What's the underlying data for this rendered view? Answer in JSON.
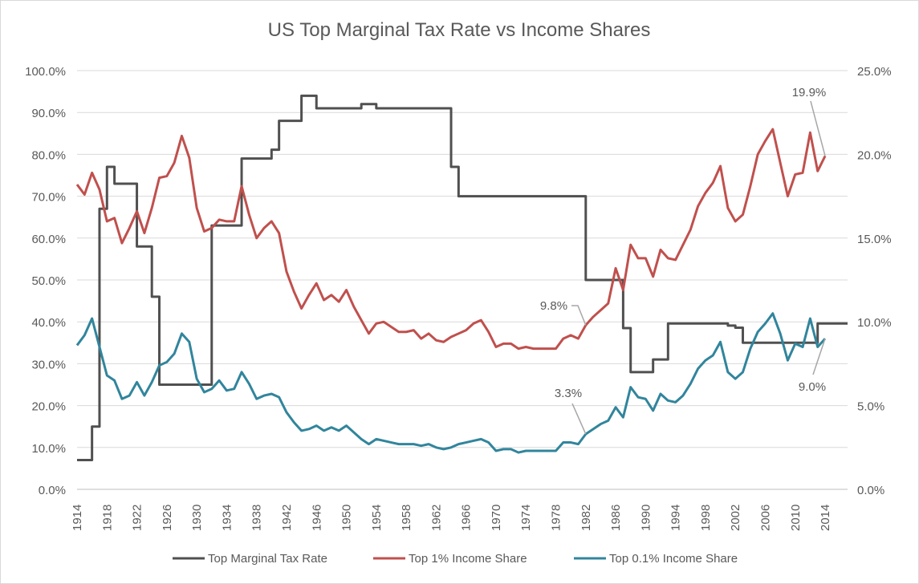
{
  "chart_data": {
    "type": "line",
    "title": "US Top Marginal Tax Rate vs Income Shares",
    "x_ticks": [
      "1914",
      "1918",
      "1922",
      "1926",
      "1930",
      "1934",
      "1938",
      "1942",
      "1946",
      "1950",
      "1954",
      "1958",
      "1962",
      "1966",
      "1970",
      "1974",
      "1978",
      "1982",
      "1986",
      "1990",
      "1994",
      "1998",
      "2002",
      "2006",
      "2010",
      "2014"
    ],
    "xlim": [
      1914,
      2017
    ],
    "y_left": {
      "ticks": [
        "0.0%",
        "10.0%",
        "20.0%",
        "30.0%",
        "40.0%",
        "50.0%",
        "60.0%",
        "70.0%",
        "80.0%",
        "90.0%",
        "100.0%"
      ],
      "ylim": [
        0,
        100
      ]
    },
    "y_right": {
      "ticks": [
        "0.0%",
        "5.0%",
        "10.0%",
        "15.0%",
        "20.0%",
        "25.0%"
      ],
      "ylim": [
        0,
        25
      ]
    },
    "grid": true,
    "legend_position": "bottom",
    "series": [
      {
        "name": "Top Marginal Tax Rate",
        "axis": "left",
        "color": "#505050",
        "step": true,
        "points": [
          [
            1914,
            7
          ],
          [
            1916,
            15
          ],
          [
            1917,
            67
          ],
          [
            1918,
            77
          ],
          [
            1919,
            73
          ],
          [
            1922,
            58
          ],
          [
            1924,
            46
          ],
          [
            1925,
            25
          ],
          [
            1932,
            63
          ],
          [
            1936,
            79
          ],
          [
            1940,
            81.1
          ],
          [
            1941,
            88
          ],
          [
            1944,
            94
          ],
          [
            1946,
            91
          ],
          [
            1952,
            92
          ],
          [
            1954,
            91
          ],
          [
            1964,
            77
          ],
          [
            1965,
            70
          ],
          [
            1982,
            50
          ],
          [
            1987,
            38.5
          ],
          [
            1988,
            28
          ],
          [
            1991,
            31
          ],
          [
            1993,
            39.6
          ],
          [
            2001,
            39.1
          ],
          [
            2002,
            38.6
          ],
          [
            2003,
            35
          ],
          [
            2013,
            39.6
          ],
          [
            2017,
            39.6
          ]
        ]
      },
      {
        "name": "Top 1% Income Share",
        "axis": "right",
        "color": "#c0504d",
        "start_year": 1914,
        "values": [
          18.2,
          17.6,
          18.9,
          17.9,
          16.0,
          16.2,
          14.7,
          15.6,
          16.6,
          15.3,
          16.8,
          18.6,
          18.7,
          19.5,
          21.1,
          19.8,
          16.8,
          15.4,
          15.6,
          16.1,
          16.0,
          16.0,
          18.1,
          16.4,
          15.0,
          15.6,
          16.0,
          15.3,
          13.0,
          11.8,
          10.8,
          11.6,
          12.3,
          11.3,
          11.6,
          11.2,
          11.9,
          10.9,
          10.1,
          9.3,
          9.9,
          10.0,
          9.7,
          9.4,
          9.4,
          9.5,
          9.0,
          9.3,
          8.9,
          8.8,
          9.1,
          9.3,
          9.5,
          9.9,
          10.1,
          9.4,
          8.5,
          8.7,
          8.7,
          8.4,
          8.5,
          8.4,
          8.4,
          8.4,
          8.4,
          9.0,
          9.2,
          9.0,
          9.8,
          10.3,
          10.7,
          11.1,
          13.2,
          11.9,
          14.6,
          13.8,
          13.8,
          12.7,
          14.3,
          13.8,
          13.7,
          14.6,
          15.5,
          16.9,
          17.7,
          18.3,
          19.3,
          16.8,
          16.0,
          16.4,
          18.1,
          20.0,
          20.8,
          21.5,
          19.5,
          17.5,
          18.8,
          18.9,
          21.3,
          19.0,
          19.9
        ]
      },
      {
        "name": "Top 0.1% Income Share",
        "axis": "right",
        "color": "#31859c",
        "start_year": 1914,
        "values": [
          8.6,
          9.2,
          10.2,
          8.5,
          6.8,
          6.5,
          5.4,
          5.6,
          6.4,
          5.6,
          6.4,
          7.4,
          7.6,
          8.1,
          9.3,
          8.8,
          6.6,
          5.8,
          6.0,
          6.5,
          5.9,
          6.0,
          7.0,
          6.3,
          5.4,
          5.6,
          5.7,
          5.5,
          4.6,
          4.0,
          3.5,
          3.6,
          3.8,
          3.5,
          3.7,
          3.5,
          3.8,
          3.4,
          3.0,
          2.7,
          3.0,
          2.9,
          2.8,
          2.7,
          2.7,
          2.7,
          2.6,
          2.7,
          2.5,
          2.4,
          2.5,
          2.7,
          2.8,
          2.9,
          3.0,
          2.8,
          2.3,
          2.4,
          2.4,
          2.2,
          2.3,
          2.3,
          2.3,
          2.3,
          2.3,
          2.8,
          2.8,
          2.7,
          3.3,
          3.6,
          3.9,
          4.1,
          4.9,
          4.3,
          6.1,
          5.5,
          5.4,
          4.7,
          5.7,
          5.3,
          5.2,
          5.6,
          6.3,
          7.2,
          7.7,
          8.0,
          8.8,
          7.0,
          6.6,
          7.0,
          8.4,
          9.4,
          9.9,
          10.5,
          9.3,
          7.7,
          8.7,
          8.5,
          10.2,
          8.5,
          9.0
        ]
      }
    ],
    "annotations": [
      {
        "text": "19.9%",
        "series": "Top 1% Income Share",
        "year": 2014
      },
      {
        "text": "9.8%",
        "series": "Top 1% Income Share",
        "year": 1982
      },
      {
        "text": "3.3%",
        "series": "Top 0.1% Income Share",
        "year": 1982
      },
      {
        "text": "9.0%",
        "series": "Top 0.1% Income Share",
        "year": 2014
      }
    ]
  }
}
